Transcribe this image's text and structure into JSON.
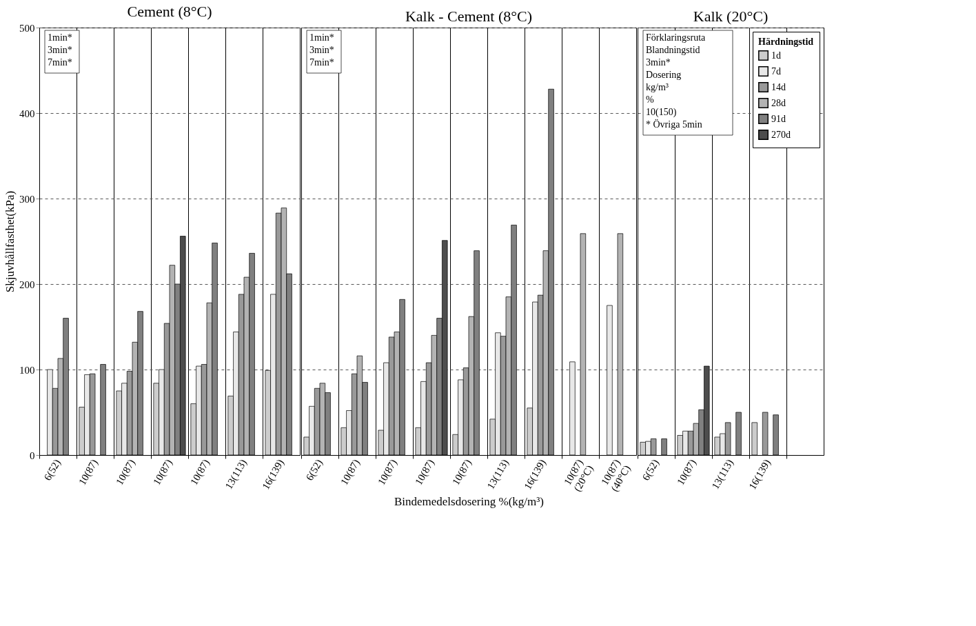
{
  "chart_data": [
    {
      "type": "bar",
      "title": "Cement (8°C)",
      "ylabel": "Skjuvhållfasthet(kPa)",
      "categories": [
        "6(52)",
        "10(87)",
        "10(87)",
        "10(87)",
        "10(87)",
        "13(113)",
        "16(139)"
      ],
      "ylim": [
        0,
        500
      ],
      "yticks": [
        0,
        100,
        200,
        300,
        400,
        500
      ],
      "grid": true,
      "series": [
        {
          "color": "#cccccc",
          "values": [
            null,
            56,
            75,
            84,
            60,
            69,
            99
          ]
        },
        {
          "color": "#e8e8e8",
          "values": [
            100,
            94,
            84,
            100,
            104,
            144,
            188
          ]
        },
        {
          "color": "#999999",
          "values": [
            78,
            95,
            98,
            154,
            106,
            188,
            283
          ]
        },
        {
          "color": "#b3b3b3",
          "values": [
            113,
            null,
            132,
            222,
            178,
            208,
            289
          ]
        },
        {
          "color": "#808080",
          "values": [
            160,
            106,
            168,
            200,
            248,
            236,
            212
          ]
        },
        {
          "color": "#4d4d4d",
          "values": [
            null,
            null,
            null,
            256,
            null,
            null,
            null
          ]
        }
      ],
      "annotations": [
        "1min*",
        "3min*",
        "7min*"
      ]
    },
    {
      "type": "bar",
      "title": "Kalk - Cement (8°C)",
      "xlabel": "Bindemedelsdosering %(kg/m³)",
      "categories": [
        "6(52)",
        "10(87)",
        "10(87)",
        "10(87)",
        "10(87)",
        "13(113)",
        "16(139)",
        "10(87)\n(20°C)",
        "10(87)\n(40°C)"
      ],
      "ylim": [
        0,
        500
      ],
      "yticks": [
        0,
        100,
        200,
        300,
        400,
        500
      ],
      "grid": true,
      "tick_labels": "x",
      "series": [
        {
          "color": "#cccccc",
          "values": [
            21,
            32,
            29,
            32,
            24,
            42,
            55,
            null,
            null
          ]
        },
        {
          "color": "#e8e8e8",
          "values": [
            57,
            52,
            108,
            86,
            88,
            143,
            179,
            109,
            175
          ]
        },
        {
          "color": "#999999",
          "values": [
            78,
            95,
            138,
            108,
            102,
            139,
            187,
            null,
            null
          ]
        },
        {
          "color": "#b3b3b3",
          "values": [
            84,
            116,
            144,
            140,
            162,
            185,
            239,
            259,
            259
          ]
        },
        {
          "color": "#808080",
          "values": [
            73,
            85,
            182,
            160,
            239,
            269,
            428,
            null,
            null
          ]
        },
        {
          "color": "#4d4d4d",
          "values": [
            null,
            null,
            null,
            251,
            null,
            null,
            null,
            null,
            null
          ]
        }
      ],
      "annotations": [
        "1min*",
        "3min*",
        "7min*"
      ]
    },
    {
      "type": "bar",
      "title": "Kalk (20°C)",
      "categories": [
        "6(52)",
        "10(87)",
        "13(113)",
        "16(139)",
        null
      ],
      "ylim": [
        0,
        500
      ],
      "yticks": [
        0,
        100,
        200,
        300,
        400,
        500
      ],
      "grid": true,
      "tick_labels": "x",
      "legend": "top right",
      "legend_title": "Härdningstid",
      "series": [
        {
          "name": "1d",
          "color": "#cccccc",
          "values": [
            15,
            23,
            21,
            38,
            null
          ]
        },
        {
          "name": "7d",
          "color": "#e8e8e8",
          "values": [
            16,
            28,
            25,
            null,
            null
          ]
        },
        {
          "name": "14d",
          "color": "#999999",
          "values": [
            19,
            28,
            38,
            50,
            null
          ]
        },
        {
          "name": "28d",
          "color": "#b3b3b3",
          "values": [
            null,
            37,
            null,
            null,
            null
          ]
        },
        {
          "name": "91d",
          "color": "#808080",
          "values": [
            19,
            53,
            50,
            47,
            null
          ]
        },
        {
          "name": "270d",
          "color": "#4d4d4d",
          "values": [
            null,
            104,
            null,
            null,
            null
          ]
        }
      ],
      "annotations": [
        "Förklaringsruta",
        "Blandningstid",
        "3min*",
        "Dosering",
        "kg/m³",
        "%",
        "10(150)",
        "* Övriga 5min"
      ]
    }
  ]
}
